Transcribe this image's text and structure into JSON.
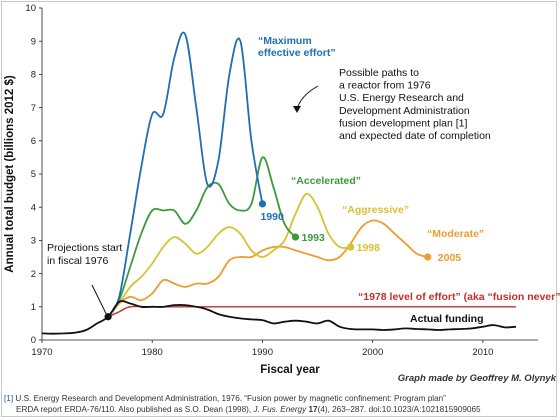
{
  "chart_data": {
    "type": "line",
    "xlabel": "Fiscal year",
    "ylabel": "Annual total budget (billions 2012 $)",
    "xlim": [
      1970,
      2015
    ],
    "ylim": [
      0,
      10
    ],
    "x_ticks": [
      "1970",
      "1980",
      "1990",
      "2000",
      "2010"
    ],
    "y_ticks": [
      "0",
      "1",
      "2",
      "3",
      "4",
      "5",
      "6",
      "7",
      "8",
      "9",
      "10"
    ],
    "grid": false,
    "series": [
      {
        "name": "“Maximum effective effort”",
        "color": "#1f6fb4",
        "end_label": "1990",
        "x": [
          1976,
          1977,
          1978,
          1979,
          1980,
          1981,
          1982,
          1983,
          1984,
          1985,
          1986,
          1987,
          1988,
          1989,
          1990
        ],
        "y": [
          0.7,
          1.3,
          3.2,
          5.2,
          6.8,
          6.8,
          8.5,
          9.2,
          7.0,
          4.7,
          5.4,
          8.0,
          9.0,
          6.0,
          4.1
        ]
      },
      {
        "name": "“Accelerated”",
        "color": "#3c9a3c",
        "end_label": "1993",
        "x": [
          1976,
          1977,
          1978,
          1979,
          1980,
          1981,
          1982,
          1983,
          1984,
          1985,
          1986,
          1987,
          1988,
          1989,
          1990,
          1991,
          1992,
          1993
        ],
        "y": [
          0.7,
          1.2,
          2.2,
          3.2,
          3.9,
          3.9,
          3.9,
          3.5,
          3.9,
          4.6,
          4.7,
          4.1,
          3.9,
          4.1,
          5.5,
          4.6,
          3.5,
          3.1
        ]
      },
      {
        "name": "“Aggressive”",
        "color": "#d8c233",
        "end_label": "1998",
        "x": [
          1976,
          1977,
          1978,
          1979,
          1980,
          1981,
          1982,
          1983,
          1984,
          1985,
          1986,
          1987,
          1988,
          1989,
          1990,
          1991,
          1992,
          1993,
          1994,
          1995,
          1996,
          1997,
          1998
        ],
        "y": [
          0.7,
          1.1,
          1.6,
          1.9,
          2.3,
          2.8,
          3.1,
          2.9,
          2.6,
          2.8,
          3.2,
          3.4,
          3.2,
          2.7,
          2.5,
          2.7,
          3.0,
          3.8,
          4.4,
          4.0,
          3.2,
          2.8,
          2.8
        ]
      },
      {
        "name": "“Moderate”",
        "color": "#ef9b2d",
        "end_label": "2005",
        "x": [
          1976,
          1977,
          1978,
          1979,
          1980,
          1981,
          1982,
          1983,
          1984,
          1985,
          1986,
          1987,
          1988,
          1989,
          1990,
          1991,
          1992,
          1993,
          1994,
          1995,
          1996,
          1997,
          1998,
          1999,
          2000,
          2001,
          2002,
          2003,
          2004,
          2005
        ],
        "y": [
          0.7,
          1.1,
          1.3,
          1.2,
          1.4,
          1.8,
          1.7,
          1.6,
          1.7,
          1.7,
          1.9,
          2.4,
          2.5,
          2.5,
          2.7,
          2.8,
          2.8,
          2.7,
          2.6,
          2.5,
          2.4,
          2.5,
          2.9,
          3.4,
          3.6,
          3.5,
          3.2,
          2.9,
          2.6,
          2.5
        ]
      },
      {
        "name": "“1978 level of effort” (aka “fusion never”)",
        "color": "#c0302c",
        "x": [
          1976,
          1977,
          1978,
          1980,
          1985,
          1990,
          1995,
          2000,
          2005,
          2010,
          2013
        ],
        "y": [
          0.7,
          0.85,
          1.0,
          1.0,
          1.0,
          1.0,
          1.0,
          1.0,
          1.0,
          1.0,
          1.0
        ]
      },
      {
        "name": "Actual funding",
        "color": "#111111",
        "x": [
          1970,
          1971,
          1972,
          1973,
          1974,
          1975,
          1976,
          1977,
          1978,
          1979,
          1980,
          1981,
          1982,
          1983,
          1984,
          1985,
          1986,
          1987,
          1988,
          1989,
          1990,
          1991,
          1992,
          1993,
          1994,
          1995,
          1996,
          1997,
          1998,
          1999,
          2000,
          2001,
          2002,
          2003,
          2004,
          2005,
          2006,
          2007,
          2008,
          2009,
          2010,
          2011,
          2012,
          2013
        ],
        "y": [
          0.2,
          0.19,
          0.2,
          0.22,
          0.3,
          0.5,
          0.7,
          1.15,
          1.1,
          1.0,
          1.0,
          1.0,
          1.05,
          1.05,
          1.0,
          0.92,
          0.78,
          0.7,
          0.65,
          0.62,
          0.6,
          0.5,
          0.55,
          0.58,
          0.55,
          0.5,
          0.58,
          0.4,
          0.33,
          0.32,
          0.32,
          0.3,
          0.32,
          0.35,
          0.33,
          0.32,
          0.3,
          0.32,
          0.33,
          0.35,
          0.4,
          0.45,
          0.38,
          0.4
        ]
      }
    ],
    "annotations": {
      "paths_note": [
        "Possible paths to",
        "a reactor from 1976",
        "U.S. Energy Research and",
        "Development Administration",
        "fusion development plan [1]",
        "and expected date of completion"
      ],
      "projection_note": [
        "Projections start",
        "in fiscal 1976"
      ],
      "projection_start": {
        "x": 1976,
        "y": 0.7
      },
      "series_labels": [
        {
          "text": "“Maximum",
          "series": 0
        },
        {
          "text": "effective effort”",
          "series": 0
        },
        {
          "text": "“Accelerated”",
          "series": 1
        },
        {
          "text": "“Aggressive”",
          "series": 2
        },
        {
          "text": "“Moderate”",
          "series": 3
        },
        {
          "text": "“1978 level of effort” (aka “fusion never”)",
          "series": 4
        },
        {
          "text": "Actual funding",
          "series": 5
        }
      ],
      "credit": "Graph made by Geoffrey M. Olynyk"
    }
  },
  "footnote": {
    "ref": "[1]",
    "line1": "U.S. Energy Research and Development Administration, 1976. “Fusion power by magnetic confinement: Program plan”",
    "line2_pre": "ERDA report ERDA-76/110. Also published as S.O. Dean (1998), ",
    "journal": "J. Fus. Energy",
    "volume": "17",
    "line2_post": "(4), 263–287. doi:10.1023/A:1021815909065"
  }
}
